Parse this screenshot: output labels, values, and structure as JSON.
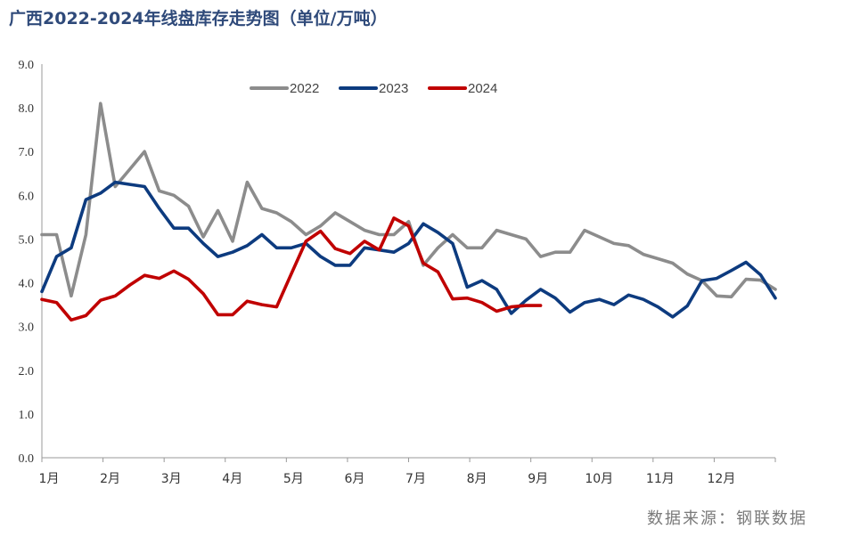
{
  "title": "广西2022-2024年线盘库存走势图（单位/万吨）",
  "source": "数据来源：钢联数据",
  "chart_data": {
    "type": "line",
    "title": "广西2022-2024年线盘库存走势图（单位/万吨）",
    "ylim": [
      0,
      9
    ],
    "yticks": [
      "0.0",
      "1.0",
      "2.0",
      "3.0",
      "4.0",
      "5.0",
      "6.0",
      "7.0",
      "8.0",
      "9.0"
    ],
    "months": [
      "1月",
      "2月",
      "3月",
      "4月",
      "5月",
      "6月",
      "7月",
      "8月",
      "9月",
      "10月",
      "11月",
      "12月"
    ],
    "x_domain": [
      0,
      50
    ],
    "legend_position": "top-center",
    "series": [
      {
        "name": "2022",
        "color": "#8c8c8c",
        "x": [
          0,
          1,
          2,
          3,
          4,
          5,
          6,
          7,
          8,
          9,
          10,
          11,
          12,
          13,
          14,
          15,
          16,
          17,
          18,
          19,
          20,
          21,
          22,
          23,
          24,
          25,
          26,
          27,
          28,
          29,
          30,
          31,
          32,
          33,
          34,
          35,
          36,
          37,
          38,
          39,
          40,
          41,
          42,
          43,
          44,
          45,
          46,
          47,
          48,
          49,
          50
        ],
        "values": [
          5.1,
          5.1,
          3.7,
          5.1,
          8.1,
          6.2,
          6.6,
          7.0,
          6.1,
          6.0,
          5.75,
          5.05,
          5.65,
          4.95,
          6.3,
          5.7,
          5.6,
          5.4,
          5.1,
          5.3,
          5.6,
          5.4,
          5.2,
          5.1,
          5.1,
          5.4,
          4.4,
          4.8,
          5.1,
          4.8,
          4.8,
          5.2,
          5.1,
          5.0,
          4.6,
          4.7,
          4.7,
          5.2,
          5.05,
          4.9,
          4.85,
          4.65,
          4.55,
          4.45,
          4.2,
          4.05,
          3.7,
          3.68,
          4.08,
          4.06,
          3.85
        ]
      },
      {
        "name": "2023",
        "color": "#0d3b7f",
        "x": [
          0,
          1,
          2,
          3,
          4,
          5,
          6,
          7,
          8,
          9,
          10,
          11,
          12,
          13,
          14,
          15,
          16,
          17,
          18,
          19,
          20,
          21,
          22,
          23,
          24,
          25,
          26,
          27,
          28,
          29,
          30,
          31,
          32,
          33,
          34,
          35,
          36,
          37,
          38,
          39,
          40,
          41,
          42,
          43,
          44,
          45,
          46,
          47,
          48,
          49,
          50
        ],
        "values": [
          3.8,
          4.6,
          4.8,
          5.9,
          6.05,
          6.3,
          6.25,
          6.2,
          5.7,
          5.25,
          5.25,
          4.9,
          4.6,
          4.7,
          4.85,
          5.1,
          4.8,
          4.8,
          4.9,
          4.6,
          4.4,
          4.4,
          4.8,
          4.75,
          4.7,
          4.9,
          5.35,
          5.15,
          4.9,
          3.9,
          4.05,
          3.85,
          3.3,
          3.6,
          3.85,
          3.65,
          3.33,
          3.55,
          3.62,
          3.5,
          3.72,
          3.62,
          3.45,
          3.22,
          3.47,
          4.05,
          4.1,
          4.28,
          4.47,
          4.18,
          3.65
        ]
      },
      {
        "name": "2024",
        "color": "#c00000",
        "x": [
          0,
          1,
          2,
          3,
          4,
          5,
          6,
          7,
          8,
          9,
          10,
          11,
          12,
          13,
          14,
          15,
          16,
          17,
          18,
          19,
          20,
          21,
          22,
          23,
          24,
          25,
          26,
          27,
          28,
          29,
          30,
          31,
          32,
          33,
          34
        ],
        "values": [
          3.62,
          3.55,
          3.15,
          3.25,
          3.6,
          3.7,
          3.95,
          4.17,
          4.1,
          4.27,
          4.08,
          3.75,
          3.27,
          3.27,
          3.58,
          3.5,
          3.45,
          4.2,
          4.95,
          5.18,
          4.78,
          4.67,
          4.95,
          4.75,
          5.48,
          5.3,
          4.45,
          4.25,
          3.63,
          3.65,
          3.55,
          3.35,
          3.45,
          3.48,
          3.48
        ]
      }
    ]
  }
}
